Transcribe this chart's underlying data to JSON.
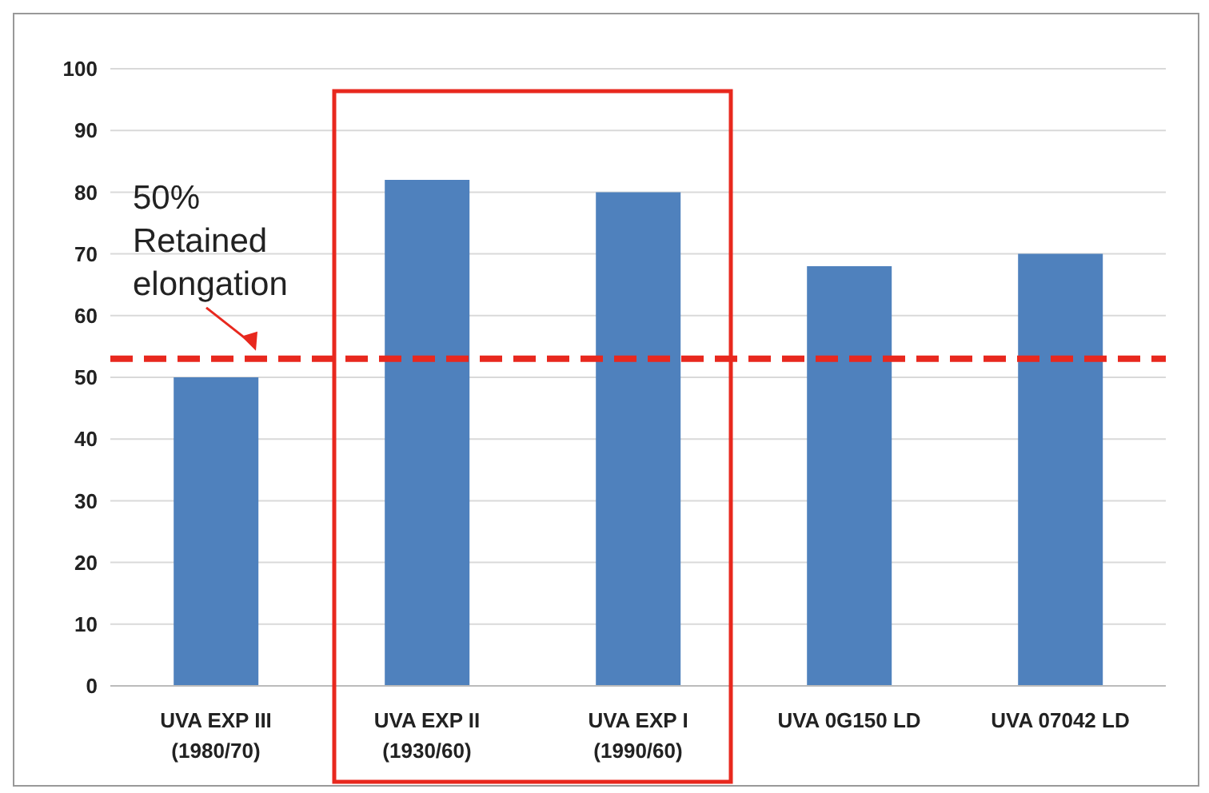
{
  "chart_data": {
    "type": "bar",
    "categories": [
      "UVA EXP III\n(1980/70)",
      "UVA EXP II\n(1930/60)",
      "UVA EXP I\n(1990/60)",
      "UVA 0G150 LD",
      "UVA 07042 LD"
    ],
    "values": [
      50,
      82,
      80,
      68,
      70
    ],
    "color": "#4f81bd",
    "ylim": [
      0,
      100
    ],
    "yticks": [
      0,
      10,
      20,
      30,
      40,
      50,
      60,
      70,
      80,
      90,
      100
    ],
    "grid": "y",
    "ref_lines": [
      {
        "axis": "y",
        "value": 53,
        "label": "50%\nRetained\nelongation",
        "color": "#e8281e",
        "line_style": "dashed"
      }
    ]
  }
}
